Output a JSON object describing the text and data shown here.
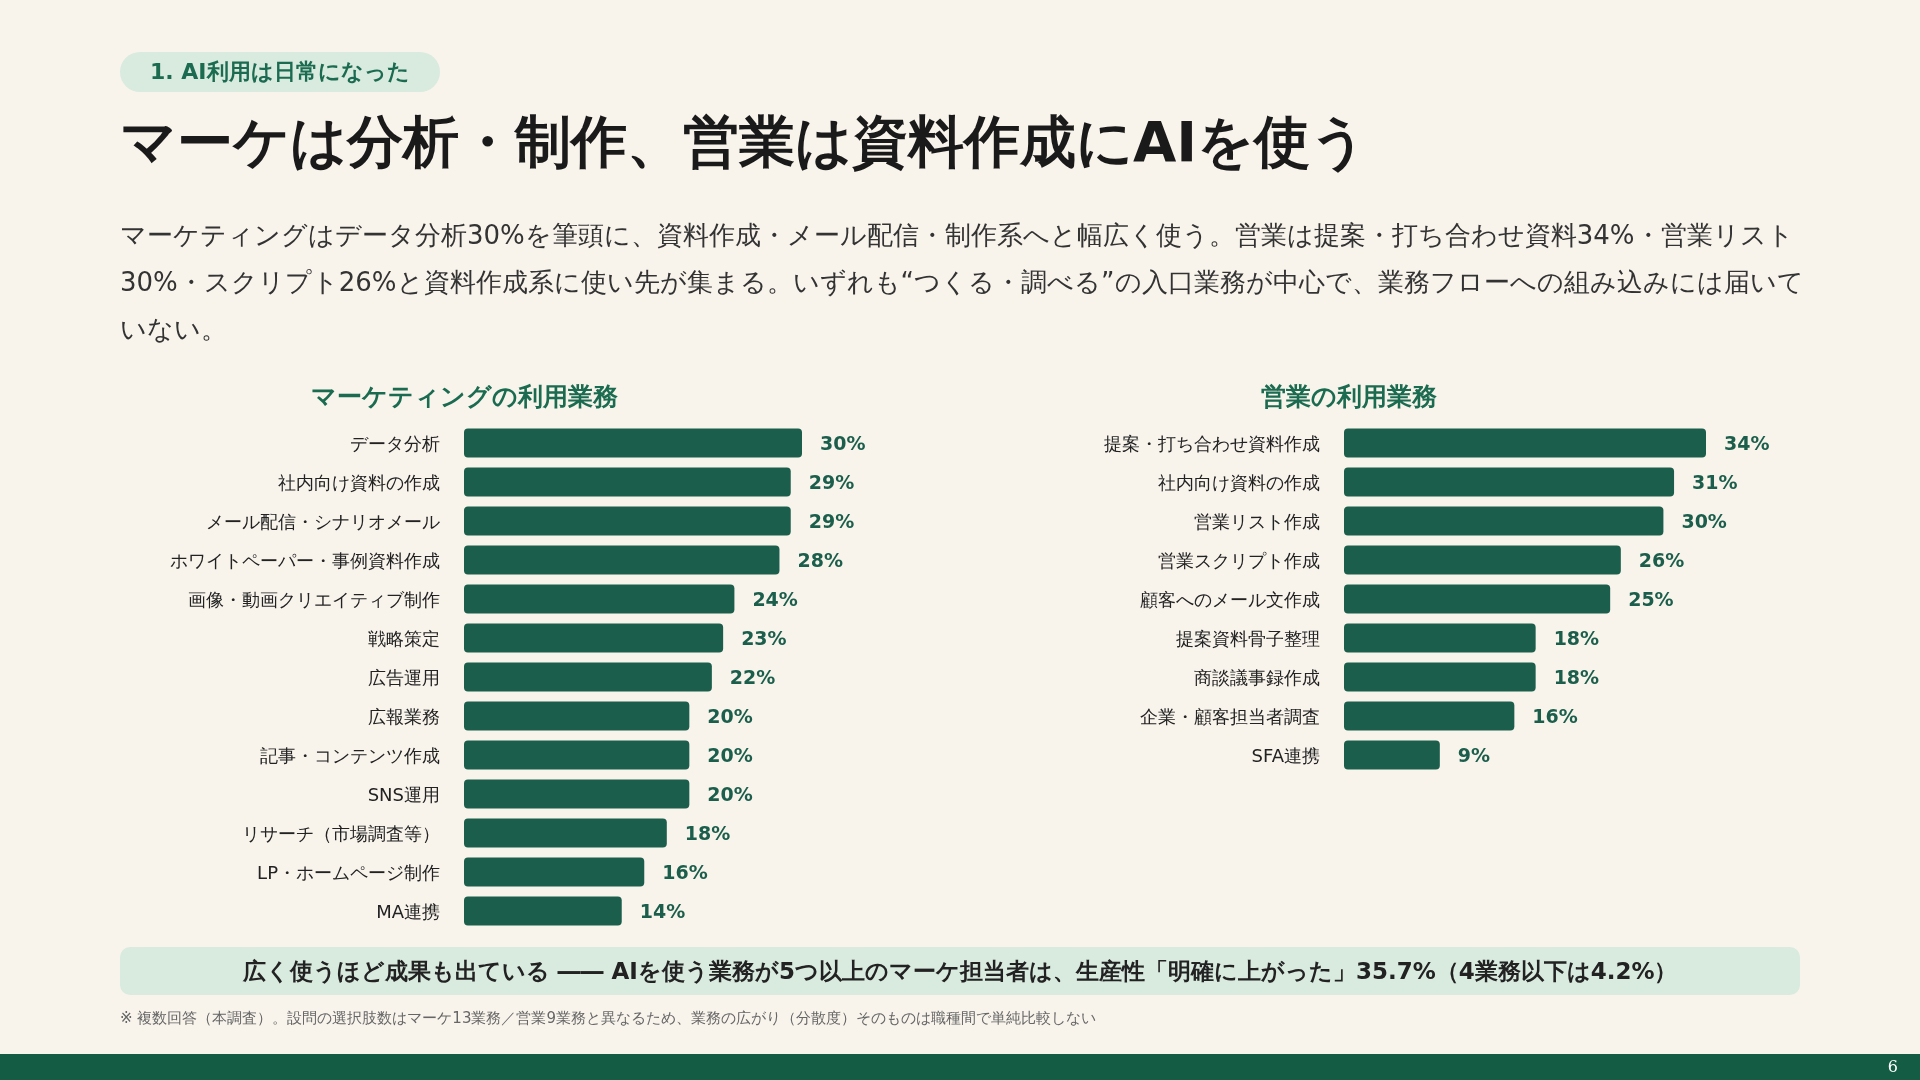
{
  "chart_data": [
    {
      "type": "other",
      "title": "マーケは分析・制作、営業は資料作成にAIを使う",
      "subtitle": "マーケティングはデータ分析30%を筆頭に、資料作成・メール配信・制作系へと幅広く使う。営業は提案・打ち合わせ資料34%・営業リスト30%・スクリプト26%と資料作成系に使い先が集まる。いずれも“つくる・調べる”の入口業務が中心で、業務フローへの組み込みには届いていない。",
      "annotations": [
        "1. AI利用は日常になった"
      ]
    },
    {
      "type": "bar",
      "orientation": "horizontal",
      "title": "マーケティングの利用業務",
      "color": "#1b5e4b",
      "categories": [
        "データ分析",
        "社内向け資料の作成",
        "メール配信・シナリオメール",
        "ホワイトペーパー・事例資料作成",
        "画像・動画クリエイティブ制作",
        "戦略策定",
        "広告運用",
        "広報業務",
        "記事・コンテンツ作成",
        "SNS運用",
        "リサーチ（市場調査等）",
        "LP・ホームページ制作",
        "MA連携"
      ],
      "values": [
        30,
        29,
        29,
        28,
        24,
        23,
        22,
        20,
        20,
        20,
        18,
        16,
        14
      ],
      "value_labels": [
        "30%",
        "29%",
        "29%",
        "28%",
        "24%",
        "23%",
        "22%",
        "20%",
        "20%",
        "20%",
        "18%",
        "16%",
        "14%"
      ]
    },
    {
      "type": "bar",
      "orientation": "horizontal",
      "title": "営業の利用業務",
      "color": "#1b5e4b",
      "categories": [
        "提案・打ち合わせ資料作成",
        "社内向け資料の作成",
        "営業リスト作成",
        "営業スクリプト作成",
        "顧客へのメール文作成",
        "提案資料骨子整理",
        "商談議事録作成",
        "企業・顧客担当者調査",
        "SFA連携"
      ],
      "values": [
        34,
        31,
        30,
        26,
        25,
        18,
        18,
        16,
        9
      ],
      "value_labels": [
        "34%",
        "31%",
        "30%",
        "26%",
        "25%",
        "18%",
        "18%",
        "16%",
        "9%"
      ]
    },
    {
      "type": "other",
      "annotations": [
        "広く使うほど成果も出ている ―― AIを使う業務が5つ以上のマーケ担当者は、生産性「明確に上がった」35.7%（4業務以下は4.2%）",
        "※ 複数回答（本調査）。設問の選択肢数はマーケ13業務／営業9業務と異なるため、業務の広がり（分散度）そのものは職種間で単純比較しない",
        "6"
      ]
    }
  ]
}
